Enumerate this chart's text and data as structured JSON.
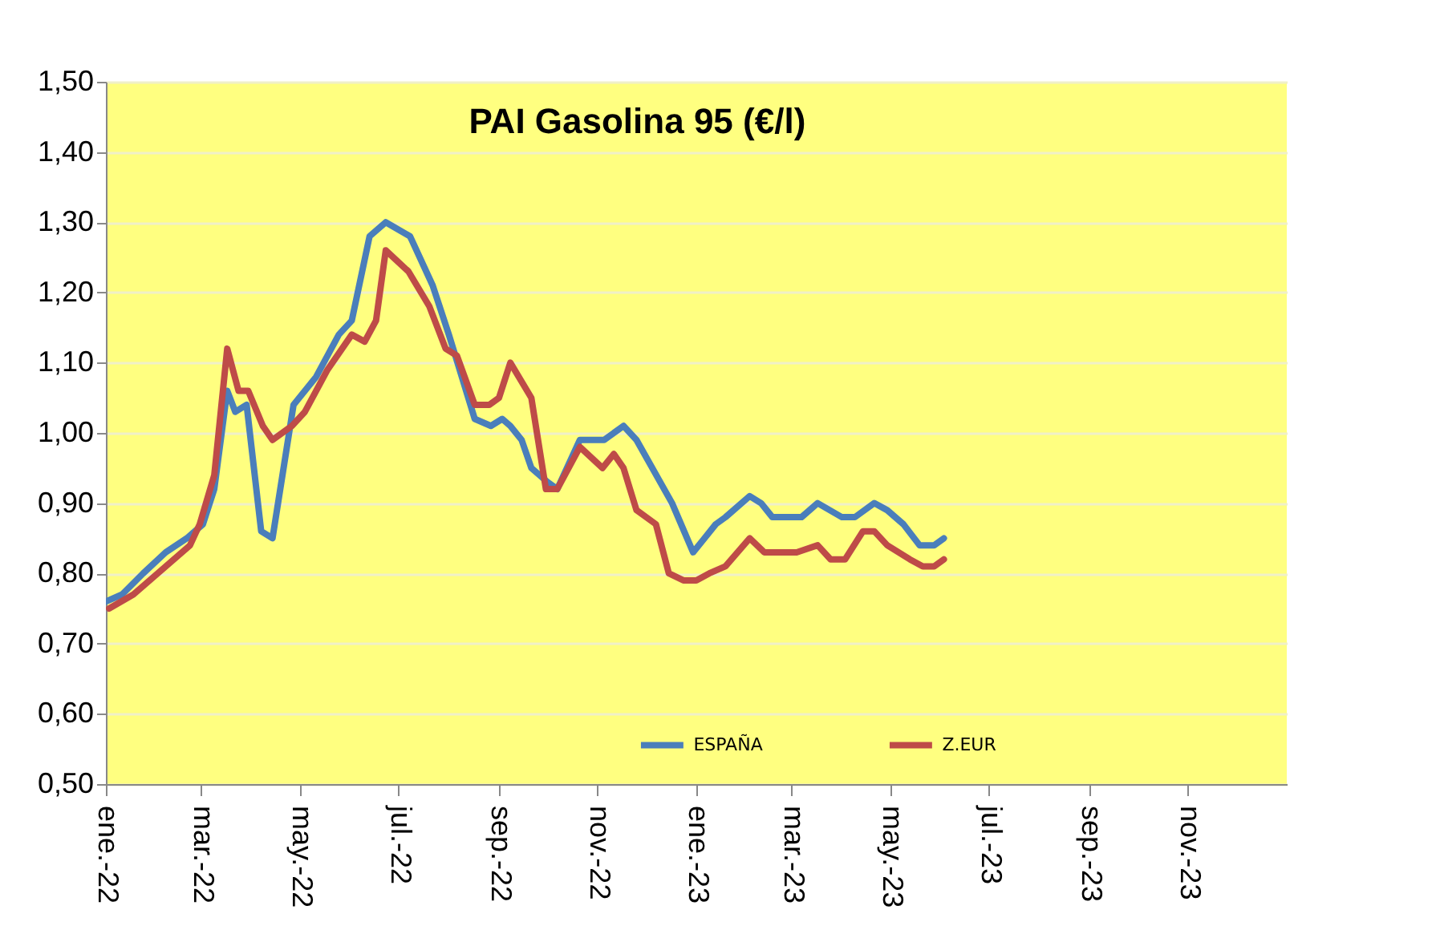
{
  "chart_data": {
    "type": "line",
    "title": "PAI Gasolina 95 (€/l)",
    "xlim": [
      "2022-01-01",
      "2024-01-01"
    ],
    "xticks": [
      {
        "value": "2022-01-01",
        "label": "ene.-22"
      },
      {
        "value": "2022-03-01",
        "label": "mar.-22"
      },
      {
        "value": "2022-05-01",
        "label": "may.-22"
      },
      {
        "value": "2022-07-01",
        "label": "jul.-22"
      },
      {
        "value": "2022-09-01",
        "label": "sep.-22"
      },
      {
        "value": "2022-11-01",
        "label": "nov.-22"
      },
      {
        "value": "2023-01-01",
        "label": "ene.-23"
      },
      {
        "value": "2023-03-01",
        "label": "mar.-23"
      },
      {
        "value": "2023-05-01",
        "label": "may.-23"
      },
      {
        "value": "2023-07-01",
        "label": "jul.-23"
      },
      {
        "value": "2023-09-01",
        "label": "sep.-23"
      },
      {
        "value": "2023-11-01",
        "label": "nov.-23"
      }
    ],
    "ylim": [
      0.5,
      1.5
    ],
    "yticks": [
      {
        "value": 0.5,
        "label": "0,50"
      },
      {
        "value": 0.6,
        "label": "0,60"
      },
      {
        "value": 0.7,
        "label": "0,70"
      },
      {
        "value": 0.8,
        "label": "0,80"
      },
      {
        "value": 0.9,
        "label": "0,90"
      },
      {
        "value": 1.0,
        "label": "1,00"
      },
      {
        "value": 1.1,
        "label": "1,10"
      },
      {
        "value": 1.2,
        "label": "1,20"
      },
      {
        "value": 1.3,
        "label": "1,30"
      },
      {
        "value": 1.4,
        "label": "1,40"
      },
      {
        "value": 1.5,
        "label": "1,50"
      }
    ],
    "grid": "y",
    "legend": "bottom",
    "line_style": "solid",
    "series": [
      {
        "name": "ESPAÑA",
        "color": "#4a7ebb",
        "x": [
          "2022-01-01",
          "2022-01-11",
          "2022-01-24",
          "2022-02-07",
          "2022-02-20",
          "2022-03-02",
          "2022-03-09",
          "2022-03-17",
          "2022-03-22",
          "2022-03-29",
          "2022-04-07",
          "2022-04-14",
          "2022-04-27",
          "2022-05-11",
          "2022-05-25",
          "2022-06-02",
          "2022-06-13",
          "2022-06-23",
          "2022-07-08",
          "2022-07-22",
          "2022-08-01",
          "2022-08-17",
          "2022-08-27",
          "2022-09-03",
          "2022-09-08",
          "2022-09-15",
          "2022-09-21",
          "2022-10-01",
          "2022-10-07",
          "2022-10-21",
          "2022-10-28",
          "2022-11-05",
          "2022-11-17",
          "2022-11-25",
          "2022-12-17",
          "2022-12-30",
          "2023-01-06",
          "2023-01-13",
          "2023-01-19",
          "2023-02-03",
          "2023-02-10",
          "2023-02-17",
          "2023-02-28",
          "2023-03-07",
          "2023-03-17",
          "2023-04-01",
          "2023-04-09",
          "2023-04-21",
          "2023-04-29",
          "2023-05-09",
          "2023-05-19",
          "2023-05-28",
          "2023-06-03"
        ],
        "values": [
          0.76,
          0.77,
          0.8,
          0.83,
          0.85,
          0.87,
          0.92,
          1.06,
          1.03,
          1.04,
          0.86,
          0.85,
          1.04,
          1.08,
          1.14,
          1.16,
          1.28,
          1.3,
          1.28,
          1.21,
          1.14,
          1.02,
          1.01,
          1.02,
          1.01,
          0.99,
          0.95,
          0.93,
          0.92,
          0.99,
          0.99,
          0.99,
          1.01,
          0.99,
          0.9,
          0.83,
          0.85,
          0.87,
          0.88,
          0.91,
          0.9,
          0.88,
          0.88,
          0.88,
          0.9,
          0.88,
          0.88,
          0.9,
          0.89,
          0.87,
          0.84,
          0.84,
          0.85
        ]
      },
      {
        "name": "Z.EUR",
        "color": "#be4b48",
        "x": [
          "2022-01-03",
          "2022-01-18",
          "2022-02-07",
          "2022-02-22",
          "2022-02-28",
          "2022-03-09",
          "2022-03-17",
          "2022-03-24",
          "2022-03-30",
          "2022-04-08",
          "2022-04-14",
          "2022-04-26",
          "2022-05-04",
          "2022-05-18",
          "2022-06-02",
          "2022-06-10",
          "2022-06-17",
          "2022-06-23",
          "2022-07-07",
          "2022-07-20",
          "2022-07-30",
          "2022-08-06",
          "2022-08-17",
          "2022-08-26",
          "2022-09-01",
          "2022-09-08",
          "2022-09-21",
          "2022-09-30",
          "2022-10-07",
          "2022-10-21",
          "2022-11-04",
          "2022-11-11",
          "2022-11-17",
          "2022-11-25",
          "2022-12-07",
          "2022-12-15",
          "2022-12-24",
          "2023-01-01",
          "2023-01-09",
          "2023-01-19",
          "2023-02-03",
          "2023-02-12",
          "2023-02-27",
          "2023-03-04",
          "2023-03-17",
          "2023-03-25",
          "2023-04-03",
          "2023-04-14",
          "2023-04-21",
          "2023-04-29",
          "2023-05-06",
          "2023-05-13",
          "2023-05-21",
          "2023-05-28",
          "2023-06-03"
        ],
        "values": [
          0.75,
          0.77,
          0.81,
          0.84,
          0.87,
          0.94,
          1.12,
          1.06,
          1.06,
          1.01,
          0.99,
          1.01,
          1.03,
          1.09,
          1.14,
          1.13,
          1.16,
          1.26,
          1.23,
          1.18,
          1.12,
          1.11,
          1.04,
          1.04,
          1.05,
          1.1,
          1.05,
          0.92,
          0.92,
          0.98,
          0.95,
          0.97,
          0.95,
          0.89,
          0.87,
          0.8,
          0.79,
          0.79,
          0.8,
          0.81,
          0.85,
          0.83,
          0.83,
          0.83,
          0.84,
          0.82,
          0.82,
          0.86,
          0.86,
          0.84,
          0.83,
          0.82,
          0.81,
          0.81,
          0.82
        ]
      }
    ]
  }
}
